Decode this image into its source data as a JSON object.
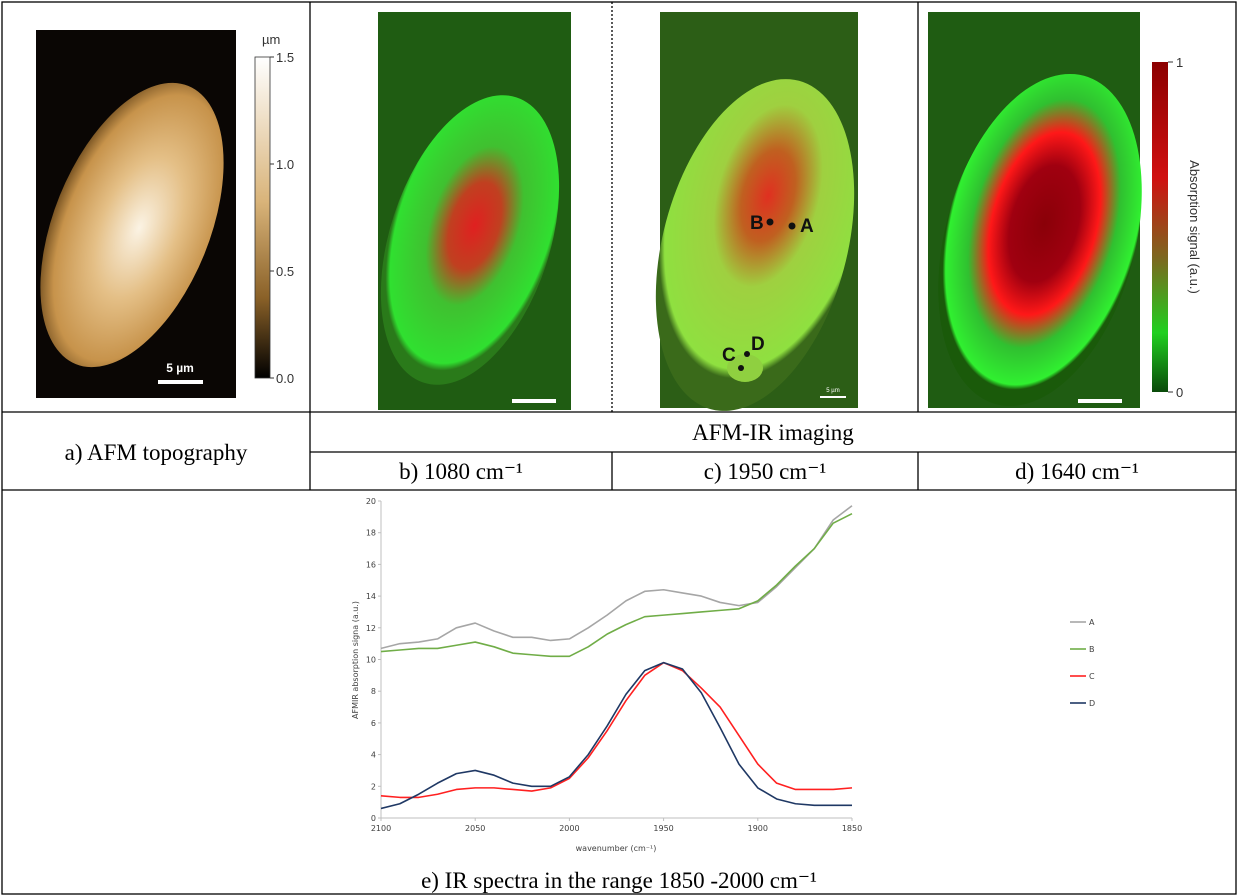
{
  "table": {
    "a": "a) AFM topography",
    "header": "AFM-IR imaging",
    "b": "b) 1080 cm⁻¹",
    "c": "c) 1950 cm⁻¹",
    "d": "d) 1640 cm⁻¹",
    "e": "e) IR spectra in the range 1850 -2000 cm⁻¹"
  },
  "topography": {
    "colorbar_unit": "µm",
    "colorbar_lim": [
      0,
      1.5
    ],
    "colorbar_ticks": [
      1.5,
      {
        "value": 1,
        "label": "1.0"
      },
      0.5,
      {
        "value": 0,
        "label": "0.0"
      }
    ],
    "scale_bar": "5 µm"
  },
  "ir_images": {
    "points": [
      "A",
      "B",
      "C",
      "D"
    ],
    "scale_bar": "5 µm",
    "colorbar_label": "Absorption signal (a.u.)",
    "colorbar_lim": [
      0,
      1
    ],
    "colorbar_ticks": [
      1,
      0
    ]
  },
  "chart_data": {
    "type": "line",
    "xlabel": "wavenumber (cm⁻¹)",
    "ylabel": "AFMIR absorption signa (a.u.)",
    "x": [
      2100,
      2090,
      2080,
      2070,
      2060,
      2050,
      2040,
      2030,
      2020,
      2010,
      2000,
      1990,
      1980,
      1970,
      1960,
      1950,
      1940,
      1930,
      1920,
      1910,
      1900,
      1890,
      1880,
      1870,
      1860,
      1850
    ],
    "xlim": [
      2100,
      1850
    ],
    "xticks": [
      2100,
      2050,
      2000,
      1950,
      1900,
      1850
    ],
    "ylim": [
      0,
      20
    ],
    "yticks": [
      0,
      2,
      4,
      6,
      8,
      10,
      12,
      14,
      16,
      18,
      20
    ],
    "series": [
      {
        "name": "A",
        "color": "#a6a6a6",
        "values": [
          10.7,
          11.0,
          11.1,
          11.3,
          12.0,
          12.3,
          11.8,
          11.4,
          11.4,
          11.2,
          11.3,
          12.0,
          12.8,
          13.7,
          14.3,
          14.4,
          14.2,
          14.0,
          13.6,
          13.4,
          13.6,
          14.6,
          15.8,
          17.0,
          18.8,
          19.7
        ]
      },
      {
        "name": "B",
        "color": "#70ad47",
        "values": [
          10.5,
          10.6,
          10.7,
          10.7,
          10.9,
          11.1,
          10.8,
          10.4,
          10.3,
          10.2,
          10.2,
          10.8,
          11.6,
          12.2,
          12.7,
          12.8,
          12.9,
          13.0,
          13.1,
          13.2,
          13.7,
          14.7,
          15.9,
          17.0,
          18.6,
          19.2
        ]
      },
      {
        "name": "C",
        "color": "#ff2020",
        "values": [
          1.4,
          1.3,
          1.3,
          1.5,
          1.8,
          1.9,
          1.9,
          1.8,
          1.7,
          1.9,
          2.5,
          3.8,
          5.5,
          7.4,
          9.0,
          9.8,
          9.3,
          8.2,
          7.0,
          5.2,
          3.4,
          2.2,
          1.8,
          1.8,
          1.8,
          1.9
        ]
      },
      {
        "name": "D",
        "color": "#1f3864",
        "values": [
          0.6,
          0.9,
          1.5,
          2.2,
          2.8,
          3.0,
          2.7,
          2.2,
          2.0,
          2.0,
          2.6,
          4.0,
          5.8,
          7.8,
          9.3,
          9.8,
          9.4,
          7.9,
          5.7,
          3.4,
          1.9,
          1.2,
          0.9,
          0.8,
          0.8,
          0.8
        ]
      }
    ]
  }
}
